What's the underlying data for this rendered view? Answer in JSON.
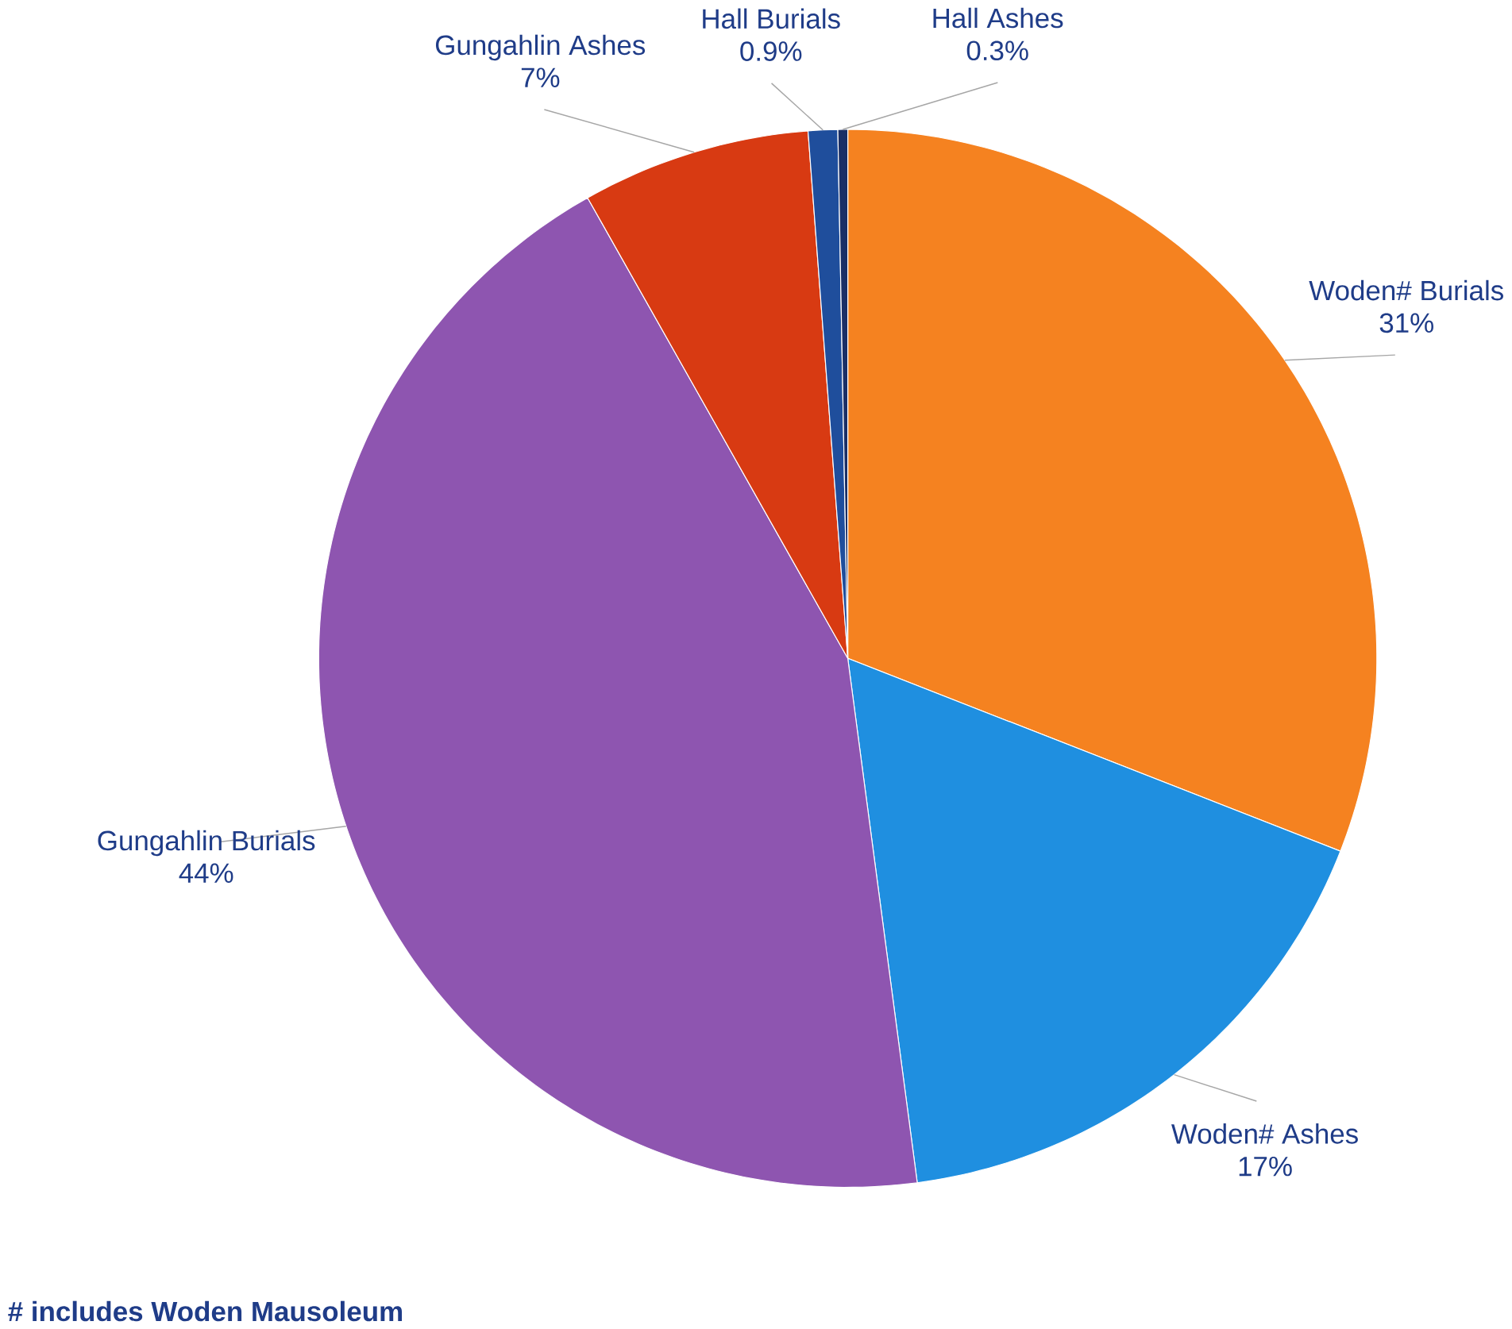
{
  "chart_data": {
    "type": "pie",
    "categories": [
      "Woden# Burials",
      "Woden# Ashes",
      "Gungahlin Burials",
      "Gungahlin Ashes",
      "Hall Burials",
      "Hall Ashes"
    ],
    "values": [
      31,
      17,
      44,
      7,
      0.9,
      0.3
    ],
    "value_labels": [
      "31%",
      "17%",
      "44%",
      "7%",
      "0.9%",
      "0.3%"
    ],
    "colors": [
      "#f58220",
      "#1f8fe0",
      "#8e55b0",
      "#d83a12",
      "#1f4e9c",
      "#1a2f66"
    ],
    "annotations": [
      "# includes Woden Mausoleum"
    ]
  }
}
